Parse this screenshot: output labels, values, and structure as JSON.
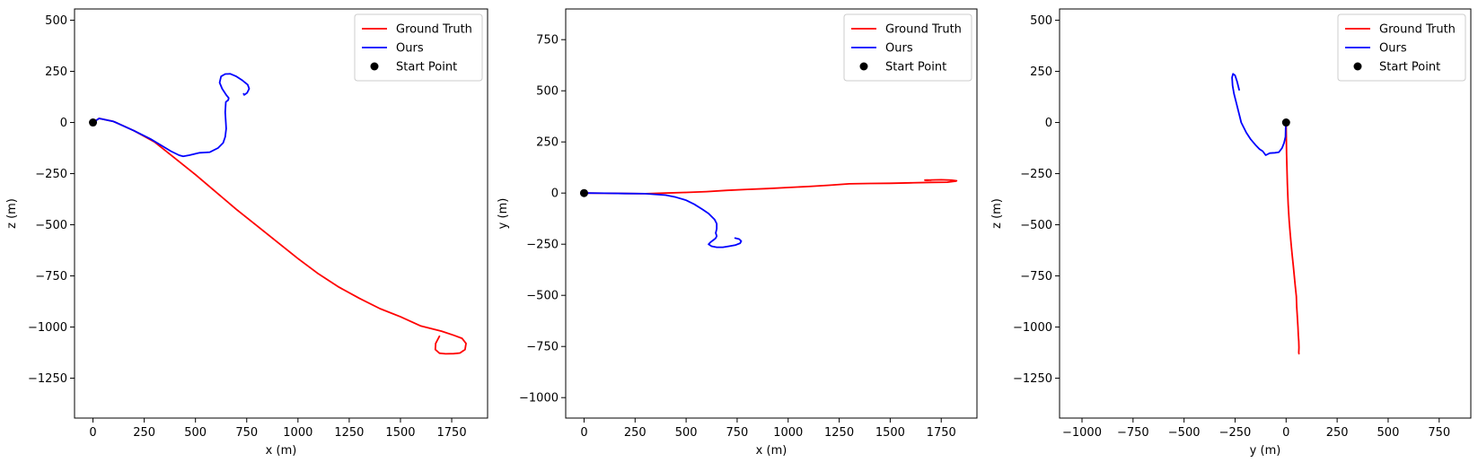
{
  "colors": {
    "ground_truth": "#ff0000",
    "ours": "#0000ff",
    "start_point": "#000000"
  },
  "legend_labels": {
    "ground_truth": "Ground Truth",
    "ours": "Ours",
    "start_point": "Start Point"
  },
  "chart_data": [
    {
      "type": "line",
      "xlabel": "x (m)",
      "ylabel": "z (m)",
      "xlim": [
        -90,
        1925
      ],
      "ylim": [
        -1445,
        555
      ],
      "xticks": [
        0,
        250,
        500,
        750,
        1000,
        1250,
        1500,
        1750
      ],
      "yticks": [
        -1250,
        -1000,
        -750,
        -500,
        -250,
        0,
        250,
        500
      ],
      "legend": "top-right",
      "grid": false,
      "series": [
        {
          "name": "Ground Truth",
          "color": "#ff0000",
          "x": [
            0,
            30,
            100,
            200,
            300,
            400,
            500,
            600,
            700,
            800,
            900,
            1000,
            1100,
            1200,
            1300,
            1400,
            1500,
            1600,
            1700,
            1760,
            1800,
            1820,
            1815,
            1790,
            1760,
            1720,
            1690,
            1670,
            1672,
            1690
          ],
          "y": [
            0,
            20,
            5,
            -40,
            -95,
            -175,
            -255,
            -340,
            -425,
            -505,
            -585,
            -665,
            -740,
            -805,
            -860,
            -910,
            -950,
            -995,
            -1020,
            -1040,
            -1055,
            -1080,
            -1110,
            -1127,
            -1130,
            -1131,
            -1128,
            -1110,
            -1080,
            -1045
          ]
        },
        {
          "name": "Ours",
          "color": "#0000ff",
          "x": [
            0,
            30,
            100,
            200,
            280,
            330,
            380,
            420,
            440,
            470,
            520,
            570,
            610,
            635,
            645,
            650,
            648,
            645,
            648,
            660,
            662,
            650,
            630,
            618,
            625,
            645,
            670,
            700,
            730,
            755,
            762,
            752,
            738,
            735
          ],
          "y": [
            0,
            20,
            5,
            -40,
            -80,
            -110,
            -140,
            -160,
            -165,
            -160,
            -148,
            -145,
            -125,
            -100,
            -70,
            -30,
            0,
            50,
            100,
            110,
            120,
            135,
            165,
            195,
            225,
            237,
            238,
            225,
            205,
            185,
            165,
            145,
            135,
            140
          ]
        },
        {
          "name": "Start Point",
          "color": "#000000",
          "x": [
            0
          ],
          "y": [
            0
          ]
        }
      ]
    },
    {
      "type": "line",
      "xlabel": "x (m)",
      "ylabel": "y (m)",
      "xlim": [
        -90,
        1925
      ],
      "ylim": [
        -1100,
        900
      ],
      "xticks": [
        0,
        250,
        500,
        750,
        1000,
        1250,
        1500,
        1750
      ],
      "yticks": [
        -1000,
        -750,
        -500,
        -250,
        0,
        250,
        500,
        750
      ],
      "legend": "top-right",
      "grid": false,
      "series": [
        {
          "name": "Ground Truth",
          "color": "#ff0000",
          "x": [
            0,
            100,
            200,
            300,
            400,
            500,
            600,
            700,
            800,
            900,
            1000,
            1100,
            1200,
            1300,
            1400,
            1500,
            1600,
            1700,
            1780,
            1820,
            1825,
            1800,
            1750,
            1700,
            1680,
            1670,
            1680,
            1700
          ],
          "y": [
            0,
            -1,
            -2,
            -3,
            0,
            3,
            7,
            13,
            18,
            22,
            27,
            32,
            38,
            45,
            47,
            48,
            50,
            52,
            53,
            58,
            60,
            63,
            65,
            64,
            62,
            63,
            64,
            63
          ]
        },
        {
          "name": "Ours",
          "color": "#0000ff",
          "x": [
            0,
            100,
            200,
            300,
            400,
            450,
            500,
            540,
            580,
            610,
            625,
            640,
            650,
            650,
            645,
            650,
            645,
            640,
            620,
            610,
            625,
            650,
            680,
            710,
            740,
            765,
            770,
            760,
            740
          ],
          "y": [
            0,
            -1,
            -2,
            -3,
            -10,
            -20,
            -35,
            -55,
            -80,
            -100,
            -115,
            -130,
            -150,
            -175,
            -195,
            -210,
            -220,
            -225,
            -240,
            -250,
            -260,
            -265,
            -265,
            -260,
            -255,
            -245,
            -235,
            -225,
            -220
          ]
        },
        {
          "name": "Start Point",
          "color": "#000000",
          "x": [
            0
          ],
          "y": [
            0
          ]
        }
      ]
    },
    {
      "type": "line",
      "xlabel": "y (m)",
      "ylabel": "z (m)",
      "xlim": [
        -1110,
        905
      ],
      "ylim": [
        -1445,
        555
      ],
      "xticks": [
        -1000,
        -750,
        -500,
        -250,
        0,
        250,
        500,
        750
      ],
      "yticks": [
        -1250,
        -1000,
        -750,
        -500,
        -250,
        0,
        250,
        500
      ],
      "legend": "top-right",
      "grid": false,
      "series": [
        {
          "name": "Ground Truth",
          "color": "#ff0000",
          "x": [
            0,
            2,
            6,
            10,
            15,
            20,
            25,
            30,
            35,
            40,
            45,
            50,
            52,
            55,
            58,
            60,
            62,
            63,
            62,
            63
          ],
          "y": [
            0,
            -150,
            -300,
            -400,
            -480,
            -540,
            -600,
            -650,
            -700,
            -750,
            -800,
            -850,
            -900,
            -950,
            -1000,
            -1040,
            -1070,
            -1100,
            -1125,
            -1130
          ]
        },
        {
          "name": "Ours",
          "color": "#0000ff",
          "x": [
            0,
            -2,
            -3,
            -10,
            -20,
            -35,
            -55,
            -80,
            -100,
            -115,
            -130,
            -150,
            -175,
            -195,
            -210,
            -220,
            -225,
            -235,
            -245,
            -255,
            -262,
            -265,
            -260,
            -250,
            -240,
            -230
          ],
          "y": [
            0,
            -30,
            -70,
            -100,
            -125,
            -145,
            -148,
            -150,
            -160,
            -140,
            -130,
            -110,
            -80,
            -50,
            -20,
            0,
            20,
            60,
            100,
            140,
            180,
            220,
            238,
            230,
            200,
            160
          ]
        },
        {
          "name": "Start Point",
          "color": "#000000",
          "x": [
            0
          ],
          "y": [
            0
          ]
        }
      ]
    }
  ]
}
